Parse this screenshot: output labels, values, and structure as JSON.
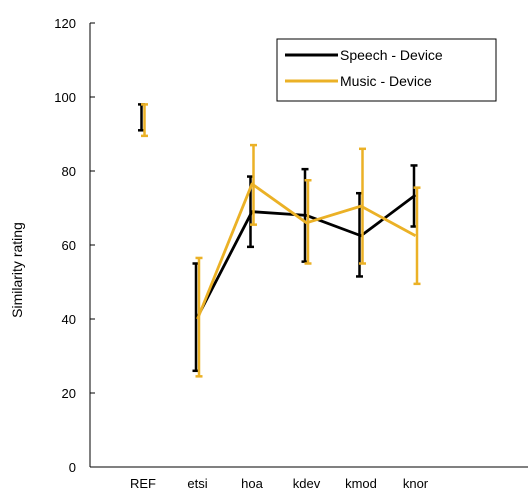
{
  "chart_data": {
    "type": "line",
    "title": "",
    "xlabel": "",
    "ylabel": "Similarity rating",
    "ylim": [
      0,
      120
    ],
    "yticks": [
      0,
      20,
      40,
      60,
      80,
      100,
      120
    ],
    "categories": [
      "REF",
      "etsi",
      "hoa",
      "kdev",
      "kmod",
      "knor"
    ],
    "grid": false,
    "legend_position": "top-right",
    "series": [
      {
        "name": "Speech - Device",
        "color": "#000000",
        "values": [
          94.5,
          40.5,
          69,
          68,
          62.5,
          73.5
        ],
        "err_low": [
          91,
          26,
          59.5,
          55.5,
          51.5,
          65
        ],
        "err_high": [
          98,
          55,
          78.5,
          80.5,
          74,
          81.5
        ]
      },
      {
        "name": "Music - Device",
        "color": "#EBB126",
        "values": [
          93.5,
          40,
          76.5,
          66,
          70.5,
          62.5
        ],
        "err_low": [
          89.5,
          24.5,
          65.5,
          55,
          55,
          49.5
        ],
        "err_high": [
          98,
          56.5,
          87,
          77.5,
          86,
          75.5
        ]
      }
    ]
  }
}
